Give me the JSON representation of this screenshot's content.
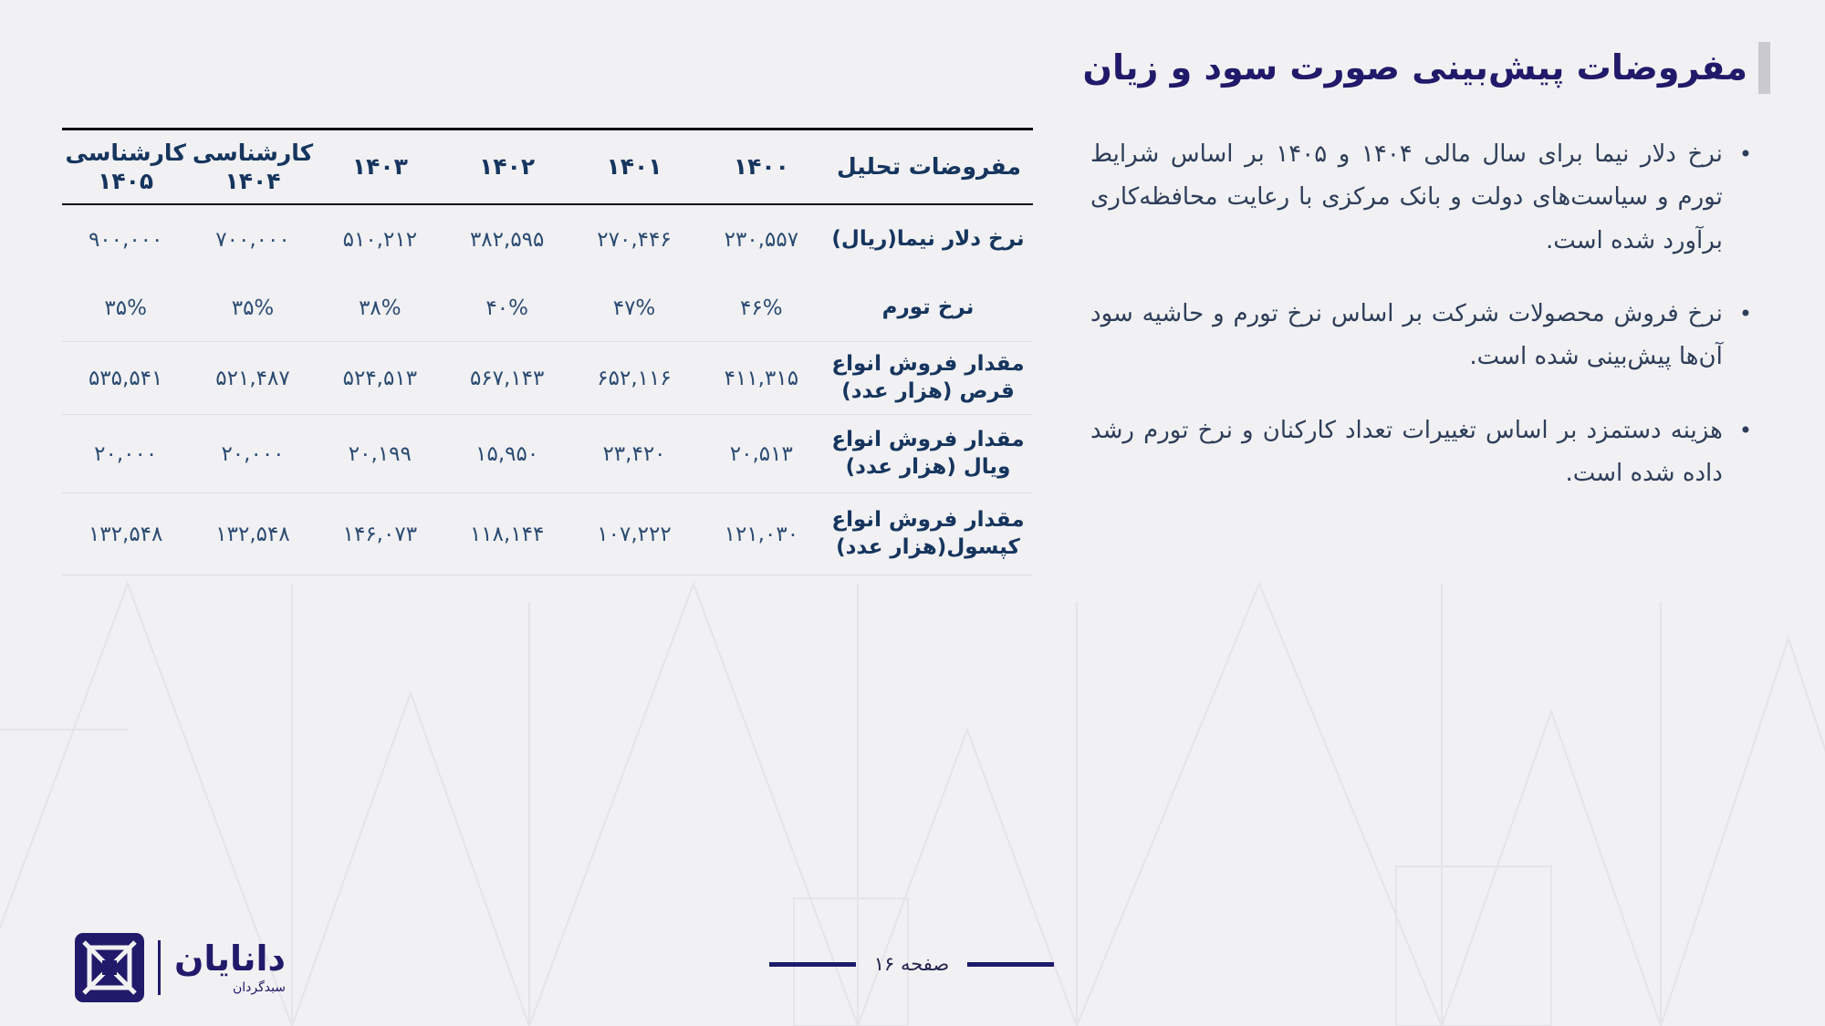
{
  "title": "مفروضات پیش‌بینی صورت سود و زیان",
  "bullets": [
    "نرخ دلار نیما برای سال مالی ۱۴۰۴ و ۱۴۰۵ بر اساس شرایط تورم و سیاست‌های دولت و بانک مرکزی با رعایت محافظه‌کاری برآورد شده است.",
    "نرخ فروش محصولات شرکت بر اساس نرخ تورم و حاشیه سود آن‌ها پیش‌بینی شده است.",
    "هزینه دستمزد بر اساس تغییرات تعداد کارکنان و نرخ تورم رشد داده شده است."
  ],
  "table": {
    "columns": [
      "مفروضات تحلیل",
      "۱۴۰۰",
      "۱۴۰۱",
      "۱۴۰۲",
      "۱۴۰۳",
      "کارشناسی ۱۴۰۴",
      "کارشناسی ۱۴۰۵"
    ],
    "rows": [
      {
        "label": "نرخ دلار نیما(ریال)",
        "values": [
          "۲۳۰,۵۵۷",
          "۲۷۰,۴۴۶",
          "۳۸۲,۵۹۵",
          "۵۱۰,۲۱۲",
          "۷۰۰,۰۰۰",
          "۹۰۰,۰۰۰"
        ],
        "divider_after": false
      },
      {
        "label": "نرخ تورم",
        "values": [
          "۴۶%",
          "۴۷%",
          "۴۰%",
          "۳۸%",
          "۳۵%",
          "۳۵%"
        ],
        "divider_after": true
      },
      {
        "label": "مقدار فروش انواع قرص (هزار عدد)",
        "values": [
          "۴۱۱,۳۱۵",
          "۶۵۲,۱۱۶",
          "۵۶۷,۱۴۳",
          "۵۲۴,۵۱۳",
          "۵۲۱,۴۸۷",
          "۵۳۵,۵۴۱"
        ],
        "divider_after": true
      },
      {
        "label": "مقدار فروش انواع ویال (هزار عدد)",
        "values": [
          "۲۰,۵۱۳",
          "۲۳,۴۲۰",
          "۱۵,۹۵۰",
          "۲۰,۱۹۹",
          "۲۰,۰۰۰",
          "۲۰,۰۰۰"
        ],
        "divider_after": true
      },
      {
        "label": "مقدار فروش انواع کپسول(هزار عدد)",
        "values": [
          "۱۲۱,۰۳۰",
          "۱۰۷,۲۲۲",
          "۱۱۸,۱۴۴",
          "۱۴۶,۰۷۳",
          "۱۳۲,۵۴۸",
          "۱۳۲,۵۴۸"
        ],
        "divider_after": true
      }
    ]
  },
  "footer": {
    "page_label": "صفحه ۱۶",
    "logo_title": "دانایان",
    "logo_subtitle": "سبدگردان"
  },
  "colors": {
    "accent_indigo": "#211a6a",
    "table_text": "#2c4b72",
    "label_text": "#16355e",
    "background": "#f1f1f3",
    "header_rule": "#0c0c12",
    "row_divider": "#dddde3"
  },
  "bullet_glyph": "•"
}
